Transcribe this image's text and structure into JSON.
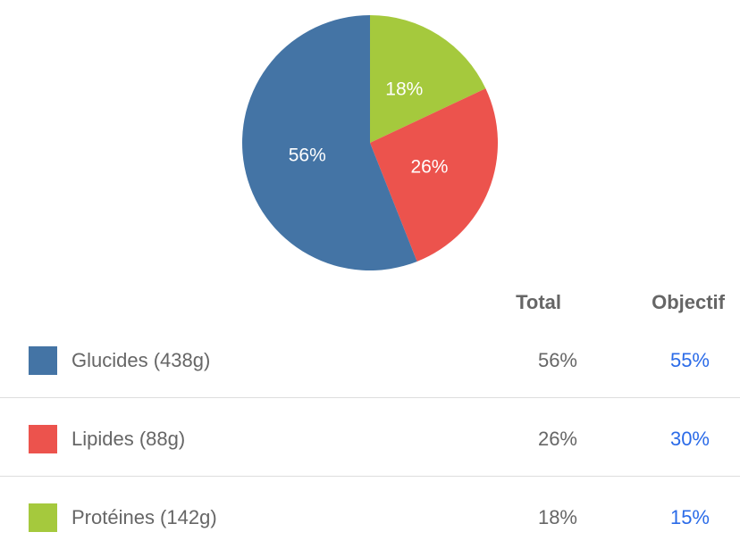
{
  "chart_data": {
    "type": "pie",
    "categories": [
      "Protéines",
      "Lipides",
      "Glucides"
    ],
    "values": [
      18,
      26,
      56
    ],
    "labels": [
      "18%",
      "26%",
      "56%"
    ],
    "colors": [
      "#a5c93d",
      "#ec534d",
      "#4474a5"
    ]
  },
  "table": {
    "header_total": "Total",
    "header_objectif": "Objectif",
    "objectif_color": "#2b6be8",
    "rows": [
      {
        "label": "Glucides (438g)",
        "total": "56%",
        "objectif": "55%",
        "color": "#4474a5"
      },
      {
        "label": "Lipides (88g)",
        "total": "26%",
        "objectif": "30%",
        "color": "#ec534d"
      },
      {
        "label": "Protéines (142g)",
        "total": "18%",
        "objectif": "15%",
        "color": "#a5c93d"
      }
    ]
  }
}
